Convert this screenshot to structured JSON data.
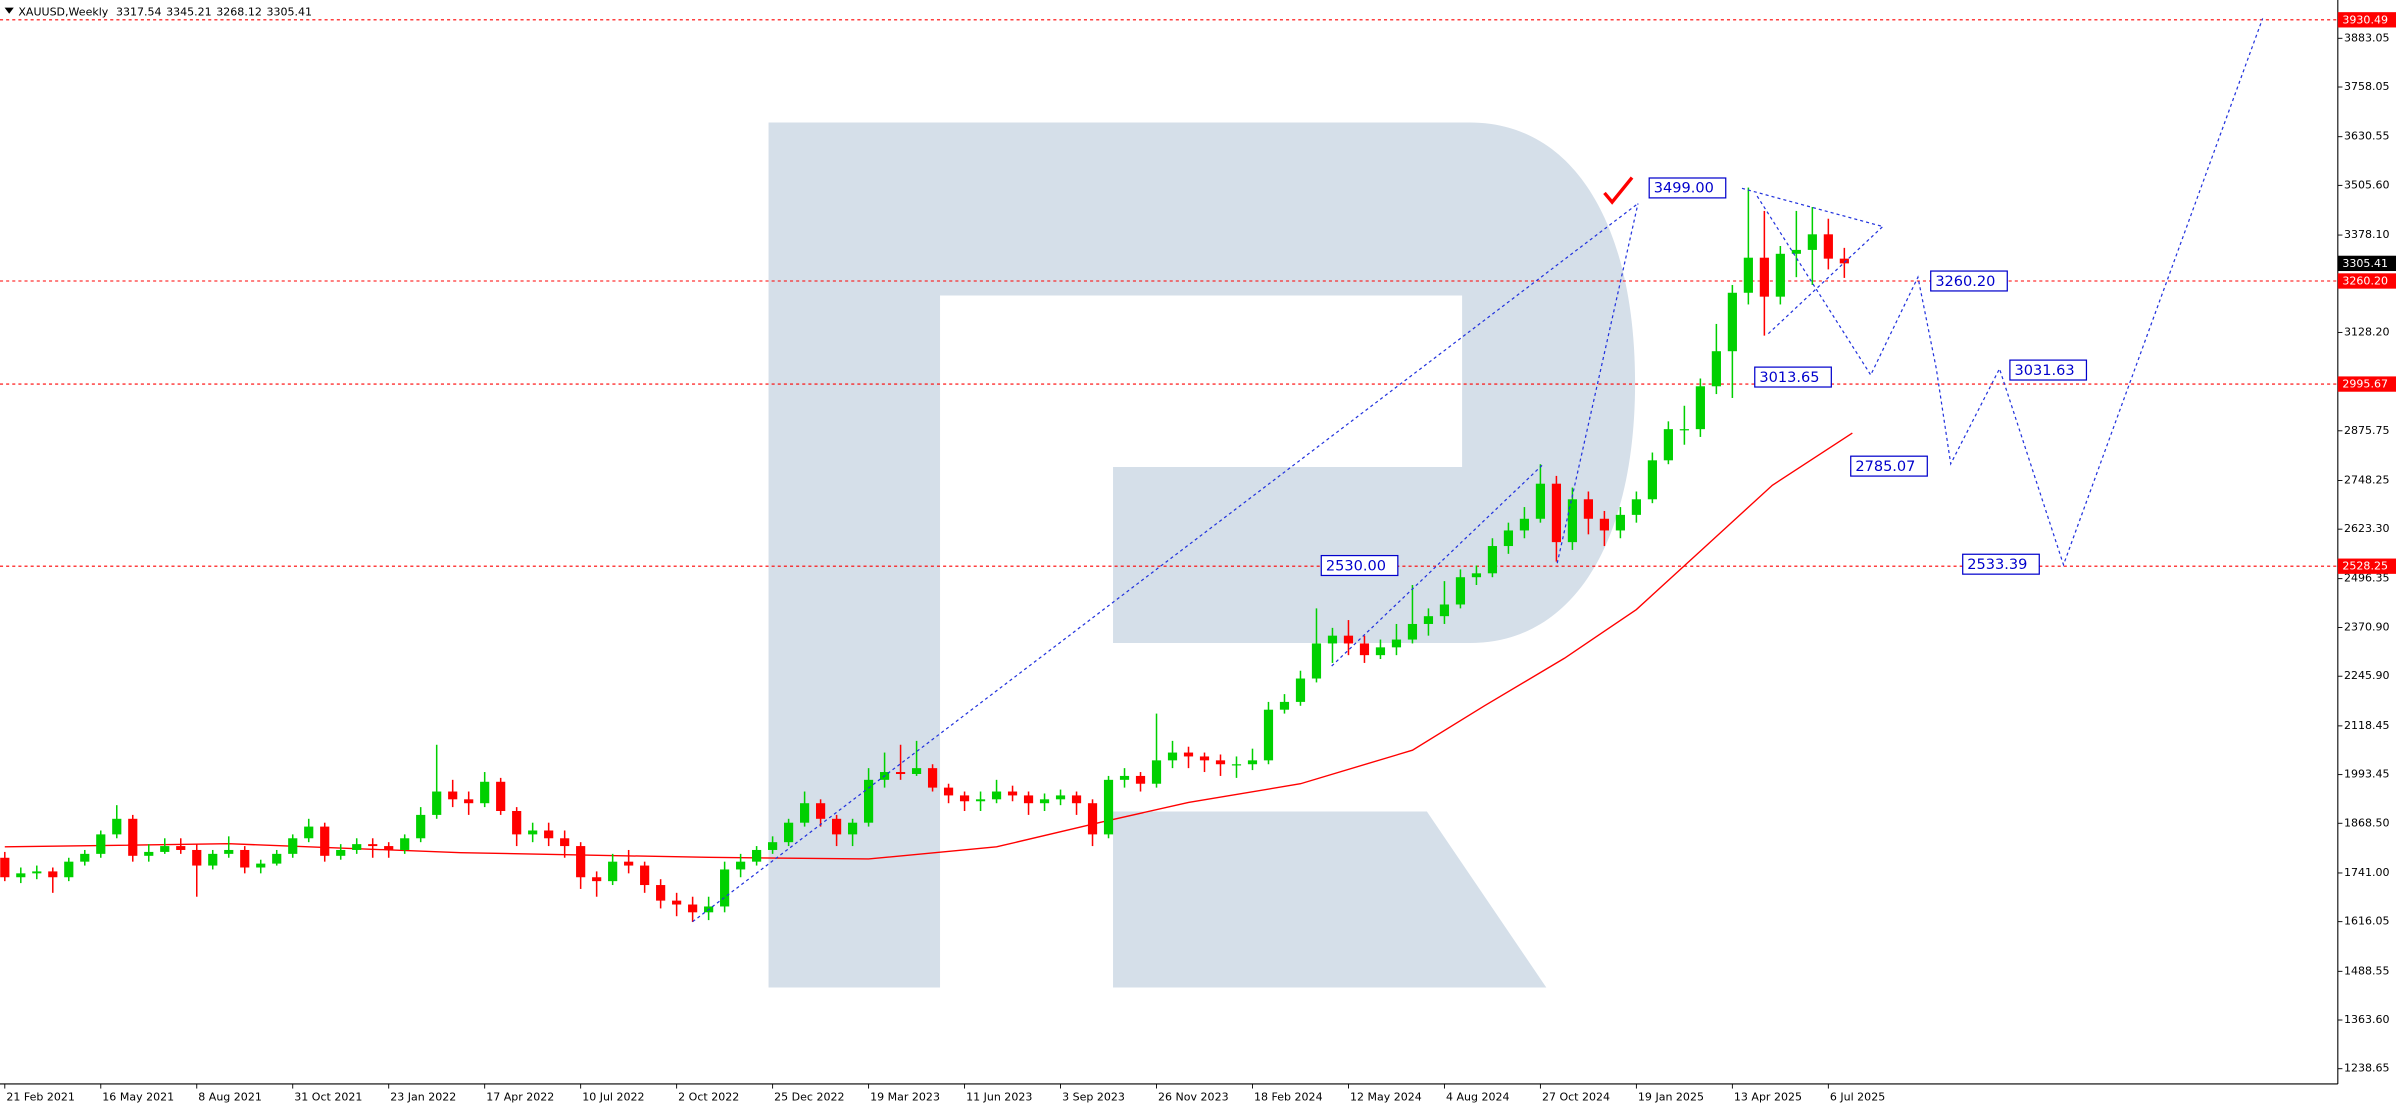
{
  "chart_data": {
    "type": "candlestick",
    "title": "XAUUSD,Weekly",
    "up_color": "#00d000",
    "down_color": "#ff0000",
    "xlim": [
      -0.6,
      291.7
    ],
    "ylim": [
      1199.5,
      3981.3
    ],
    "xticks": [
      {
        "value": 0,
        "label": "21 Feb 2021"
      },
      {
        "value": 12,
        "label": "16 May 2021"
      },
      {
        "value": 24,
        "label": "8 Aug 2021"
      },
      {
        "value": 36,
        "label": "31 Oct 2021"
      },
      {
        "value": 48,
        "label": "23 Jan 2022"
      },
      {
        "value": 60,
        "label": "17 Apr 2022"
      },
      {
        "value": 72,
        "label": "10 Jul 2022"
      },
      {
        "value": 84,
        "label": "2 Oct 2022"
      },
      {
        "value": 96,
        "label": "25 Dec 2022"
      },
      {
        "value": 108,
        "label": "19 Mar 2023"
      },
      {
        "value": 120,
        "label": "11 Jun 2023"
      },
      {
        "value": 132,
        "label": "3 Sep 2023"
      },
      {
        "value": 144,
        "label": "26 Nov 2023"
      },
      {
        "value": 156,
        "label": "18 Feb 2024"
      },
      {
        "value": 168,
        "label": "12 May 2024"
      },
      {
        "value": 180,
        "label": "4 Aug 2024"
      },
      {
        "value": 192,
        "label": "27 Oct 2024"
      },
      {
        "value": 204,
        "label": "19 Jan 2025"
      },
      {
        "value": 216,
        "label": "13 Apr 2025"
      },
      {
        "value": 228,
        "label": "6 Jul 2025"
      }
    ],
    "yticks": [
      3883.05,
      3758.05,
      3630.55,
      {
        "value": 3505.6,
        "label": "3505.60"
      },
      {
        "value": 3378.1,
        "label": "3378.10"
      },
      {
        "value": 3128.2,
        "label": "3128.20"
      },
      2875.75,
      2748.25,
      {
        "value": 2623.3,
        "label": "2623.30"
      },
      2496.35,
      {
        "value": 2370.9,
        "label": "2370.90"
      },
      {
        "value": 2245.9,
        "label": "2245.90"
      },
      2118.45,
      1993.45,
      {
        "value": 1868.5,
        "label": "1868.50"
      },
      {
        "value": 1741,
        "label": "1741.00"
      },
      1616.05,
      1488.55,
      {
        "value": 1363.6,
        "label": "1363.60"
      },
      1238.65
    ],
    "levels": [
      {
        "value": 3930.49,
        "color": "#ff0000"
      },
      {
        "value": 3260.2,
        "label": "3260.20",
        "color": "#ff0000"
      },
      {
        "value": 2995.67,
        "color": "#ff0000"
      },
      {
        "value": 2528.25,
        "color": "#ff0000"
      }
    ],
    "x": [
      0,
      2,
      4,
      6,
      8,
      10,
      12,
      14,
      16,
      18,
      20,
      22,
      24,
      26,
      28,
      30,
      32,
      34,
      36,
      38,
      40,
      42,
      44,
      46,
      48,
      50,
      52,
      54,
      56,
      58,
      60,
      62,
      64,
      66,
      68,
      70,
      72,
      74,
      76,
      78,
      80,
      82,
      84,
      86,
      88,
      90,
      92,
      94,
      96,
      98,
      100,
      102,
      104,
      106,
      108,
      110,
      112,
      114,
      116,
      118,
      120,
      122,
      124,
      126,
      128,
      130,
      132,
      134,
      136,
      138,
      140,
      142,
      144,
      146,
      148,
      150,
      152,
      154,
      156,
      158,
      160,
      162,
      164,
      166,
      168,
      170,
      172,
      174,
      176,
      178,
      180,
      182,
      184,
      186,
      188,
      190,
      192,
      194,
      196,
      198,
      200,
      202,
      204,
      206,
      208,
      210,
      212,
      214,
      216,
      218,
      220,
      222,
      224,
      226,
      228,
      230
    ],
    "candles": [
      [
        1780,
        1795,
        1720,
        1730
      ],
      [
        1730,
        1755,
        1715,
        1740
      ],
      [
        1740,
        1760,
        1725,
        1745
      ],
      [
        1745,
        1755,
        1690,
        1730
      ],
      [
        1730,
        1780,
        1720,
        1770
      ],
      [
        1770,
        1800,
        1760,
        1790
      ],
      [
        1790,
        1850,
        1780,
        1840
      ],
      [
        1840,
        1915,
        1830,
        1880
      ],
      [
        1880,
        1890,
        1770,
        1785
      ],
      [
        1785,
        1815,
        1770,
        1795
      ],
      [
        1795,
        1830,
        1790,
        1810
      ],
      [
        1810,
        1830,
        1790,
        1800
      ],
      [
        1800,
        1815,
        1680,
        1760
      ],
      [
        1760,
        1800,
        1750,
        1790
      ],
      [
        1790,
        1835,
        1780,
        1800
      ],
      [
        1800,
        1810,
        1740,
        1755
      ],
      [
        1755,
        1775,
        1740,
        1765
      ],
      [
        1765,
        1800,
        1760,
        1790
      ],
      [
        1790,
        1840,
        1780,
        1830
      ],
      [
        1830,
        1880,
        1820,
        1860
      ],
      [
        1860,
        1870,
        1770,
        1785
      ],
      [
        1785,
        1815,
        1775,
        1800
      ],
      [
        1800,
        1830,
        1790,
        1815
      ],
      [
        1815,
        1830,
        1780,
        1810
      ],
      [
        1810,
        1820,
        1780,
        1800
      ],
      [
        1800,
        1840,
        1790,
        1830
      ],
      [
        1830,
        1910,
        1820,
        1890
      ],
      [
        1890,
        2070,
        1880,
        1950
      ],
      [
        1950,
        1980,
        1910,
        1930
      ],
      [
        1930,
        1950,
        1890,
        1920
      ],
      [
        1920,
        2000,
        1910,
        1975
      ],
      [
        1975,
        1985,
        1890,
        1900
      ],
      [
        1900,
        1910,
        1810,
        1840
      ],
      [
        1840,
        1870,
        1820,
        1850
      ],
      [
        1850,
        1870,
        1810,
        1830
      ],
      [
        1830,
        1850,
        1780,
        1810
      ],
      [
        1810,
        1820,
        1700,
        1730
      ],
      [
        1730,
        1745,
        1680,
        1720
      ],
      [
        1720,
        1790,
        1710,
        1770
      ],
      [
        1770,
        1800,
        1740,
        1760
      ],
      [
        1760,
        1770,
        1690,
        1710
      ],
      [
        1710,
        1725,
        1650,
        1670
      ],
      [
        1670,
        1690,
        1630,
        1660
      ],
      [
        1660,
        1680,
        1615,
        1640
      ],
      [
        1640,
        1680,
        1620,
        1655
      ],
      [
        1655,
        1770,
        1640,
        1750
      ],
      [
        1750,
        1790,
        1730,
        1770
      ],
      [
        1770,
        1810,
        1760,
        1800
      ],
      [
        1800,
        1835,
        1790,
        1820
      ],
      [
        1820,
        1880,
        1810,
        1870
      ],
      [
        1870,
        1950,
        1860,
        1920
      ],
      [
        1920,
        1930,
        1860,
        1880
      ],
      [
        1880,
        1890,
        1810,
        1840
      ],
      [
        1840,
        1880,
        1810,
        1870
      ],
      [
        1870,
        2010,
        1860,
        1980
      ],
      [
        1980,
        2050,
        1960,
        2000
      ],
      [
        2000,
        2070,
        1980,
        1995
      ],
      [
        1995,
        2080,
        1990,
        2010
      ],
      [
        2010,
        2020,
        1950,
        1960
      ],
      [
        1960,
        1970,
        1920,
        1940
      ],
      [
        1940,
        1950,
        1900,
        1925
      ],
      [
        1925,
        1950,
        1900,
        1930
      ],
      [
        1930,
        1980,
        1920,
        1950
      ],
      [
        1950,
        1965,
        1925,
        1940
      ],
      [
        1940,
        1950,
        1890,
        1920
      ],
      [
        1920,
        1945,
        1900,
        1930
      ],
      [
        1930,
        1955,
        1915,
        1940
      ],
      [
        1940,
        1950,
        1890,
        1920
      ],
      [
        1920,
        1930,
        1810,
        1840
      ],
      [
        1840,
        1990,
        1830,
        1980
      ],
      [
        1980,
        2010,
        1960,
        1990
      ],
      [
        1990,
        2000,
        1950,
        1970
      ],
      [
        1970,
        2150,
        1960,
        2030
      ],
      [
        2030,
        2080,
        2010,
        2050
      ],
      [
        2050,
        2065,
        2010,
        2040
      ],
      [
        2040,
        2050,
        2000,
        2030
      ],
      [
        2030,
        2045,
        1990,
        2020
      ],
      [
        2020,
        2040,
        1985,
        2020
      ],
      [
        2020,
        2060,
        2005,
        2030
      ],
      [
        2030,
        2180,
        2020,
        2160
      ],
      [
        2160,
        2200,
        2150,
        2180
      ],
      [
        2180,
        2260,
        2170,
        2240
      ],
      [
        2240,
        2420,
        2230,
        2330
      ],
      [
        2330,
        2370,
        2280,
        2350
      ],
      [
        2350,
        2390,
        2300,
        2330
      ],
      [
        2330,
        2350,
        2280,
        2300
      ],
      [
        2300,
        2340,
        2290,
        2320
      ],
      [
        2320,
        2380,
        2300,
        2340
      ],
      [
        2340,
        2480,
        2330,
        2380
      ],
      [
        2380,
        2420,
        2350,
        2400
      ],
      [
        2400,
        2490,
        2380,
        2430
      ],
      [
        2430,
        2520,
        2420,
        2500
      ],
      [
        2500,
        2530,
        2480,
        2510
      ],
      [
        2510,
        2600,
        2500,
        2580
      ],
      [
        2580,
        2640,
        2560,
        2620
      ],
      [
        2620,
        2680,
        2600,
        2650
      ],
      [
        2650,
        2790,
        2640,
        2740
      ],
      [
        2740,
        2760,
        2540,
        2590
      ],
      [
        2590,
        2730,
        2570,
        2700
      ],
      [
        2700,
        2720,
        2610,
        2650
      ],
      [
        2650,
        2670,
        2580,
        2620
      ],
      [
        2620,
        2680,
        2600,
        2660
      ],
      [
        2660,
        2720,
        2640,
        2700
      ],
      [
        2700,
        2820,
        2690,
        2800
      ],
      [
        2800,
        2900,
        2790,
        2880
      ],
      [
        2880,
        2940,
        2840,
        2880
      ],
      [
        2880,
        3010,
        2860,
        2990
      ],
      [
        2990,
        3150,
        2970,
        3080
      ],
      [
        3080,
        3250,
        2960,
        3230
      ],
      [
        3230,
        3500,
        3200,
        3320
      ],
      [
        3320,
        3440,
        3120,
        3220
      ],
      [
        3220,
        3350,
        3200,
        3330
      ],
      [
        3330,
        3440,
        3270,
        3340
      ],
      [
        3340,
        3450,
        3250,
        3380
      ],
      [
        3380,
        3420,
        3290,
        3317.54
      ],
      [
        3317.54,
        3345.21,
        3268.12,
        3305.41
      ]
    ],
    "ma": {
      "color": "#ff0000",
      "x": [
        0,
        28,
        57,
        88,
        108,
        124,
        137,
        148,
        162,
        176,
        185,
        195,
        204,
        212,
        221,
        231
      ],
      "values": [
        1808,
        1816,
        1793,
        1781,
        1777,
        1808,
        1871,
        1922,
        1970,
        2056,
        2170,
        2292,
        2417,
        2567,
        2736,
        2870
      ]
    },
    "lines": [
      {
        "color": "#2233dd",
        "x": [
          86,
          204.2
        ],
        "values": [
          1616,
          3459
        ]
      },
      {
        "color": "#2233dd",
        "x": [
          165.9,
          192.2
        ],
        "values": [
          2272,
          2787
        ]
      },
      {
        "color": "#2233dd",
        "x": [
          194.1,
          204.2
        ],
        "values": [
          2536,
          3459
        ]
      },
      {
        "color": "#2233dd",
        "x": [
          217.2,
          234.8
        ],
        "values": [
          3498,
          3400
        ]
      },
      {
        "color": "#2233dd",
        "x": [
          220.5,
          234.8
        ],
        "values": [
          3125,
          3400
        ]
      },
      {
        "color": "#2233dd",
        "x": [
          219.1,
          233.3,
          239.2,
          241.5,
          243.3,
          249.4,
          257.4,
          282.3
        ],
        "values": [
          3478,
          3019,
          3270,
          3035,
          2791,
          3035,
          2532,
          3934
        ]
      }
    ],
    "annotations": [
      {
        "value": 3499,
        "label": "3499.00",
        "x": 205.6
      },
      {
        "value": 3260.2,
        "label": "3260.20",
        "x": 240.8
      },
      {
        "value": 3013.65,
        "label": "3013.65",
        "x": 218.8
      },
      {
        "value": 3031.63,
        "label": "3031.63",
        "x": 250.7
      },
      {
        "value": 2785.07,
        "label": "2785.07",
        "x": 230.8
      },
      {
        "value": 2530,
        "label": "2530.00",
        "x": 164.6
      },
      {
        "value": 2533.39,
        "label": "2533.39",
        "x": 244.8
      }
    ]
  }
}
